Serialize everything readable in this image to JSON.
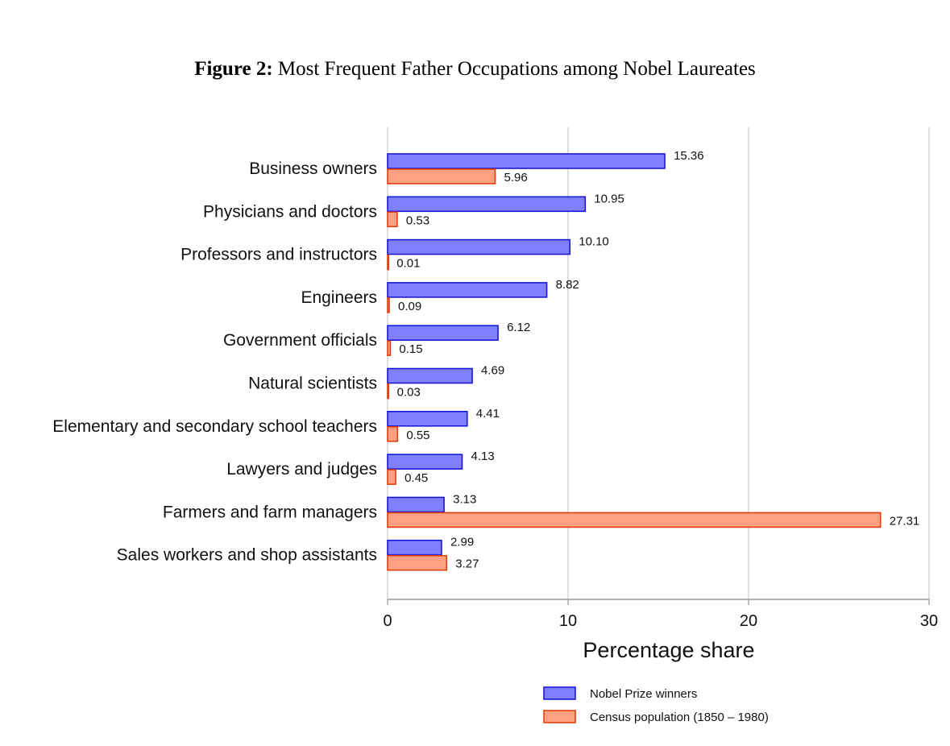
{
  "title": {
    "prefix": "Figure 2:",
    "text": "Most Frequent Father Occupations among Nobel Laureates"
  },
  "chart_data": {
    "type": "bar",
    "orientation": "horizontal",
    "categories": [
      "Business owners",
      "Physicians and doctors",
      "Professors and instructors",
      "Engineers",
      "Government officials",
      "Natural scientists",
      "Elementary and secondary school teachers",
      "Lawyers and judges",
      "Farmers and farm managers",
      "Sales workers and shop assistants"
    ],
    "series": [
      {
        "name": "Nobel Prize winners",
        "color": "#8080ff",
        "stroke": "#1a1ad6",
        "values": [
          15.36,
          10.95,
          10.1,
          8.82,
          6.12,
          4.69,
          4.41,
          4.13,
          3.13,
          2.99
        ],
        "labels": [
          "15.36",
          "10.95",
          "10.10",
          "8.82",
          "6.12",
          "4.69",
          "4.41",
          "4.13",
          "3.13",
          "2.99"
        ]
      },
      {
        "name": "Census population (1850 – 1980)",
        "color": "#ffa080",
        "stroke": "#e04010",
        "values": [
          5.96,
          0.53,
          0.01,
          0.09,
          0.15,
          0.03,
          0.55,
          0.45,
          27.31,
          3.27
        ],
        "labels": [
          "5.96",
          "0.53",
          "0.01",
          "0.09",
          "0.15",
          "0.03",
          "0.55",
          "0.45",
          "27.31",
          "3.27"
        ]
      }
    ],
    "xlabel": "Percentage share",
    "ylabel": "",
    "xlim": [
      0,
      30
    ],
    "xticks": [
      0,
      10,
      20,
      30
    ],
    "xtick_labels": [
      "0",
      "10",
      "20",
      "30"
    ],
    "grid": "vertical",
    "legend_position": "bottom"
  }
}
